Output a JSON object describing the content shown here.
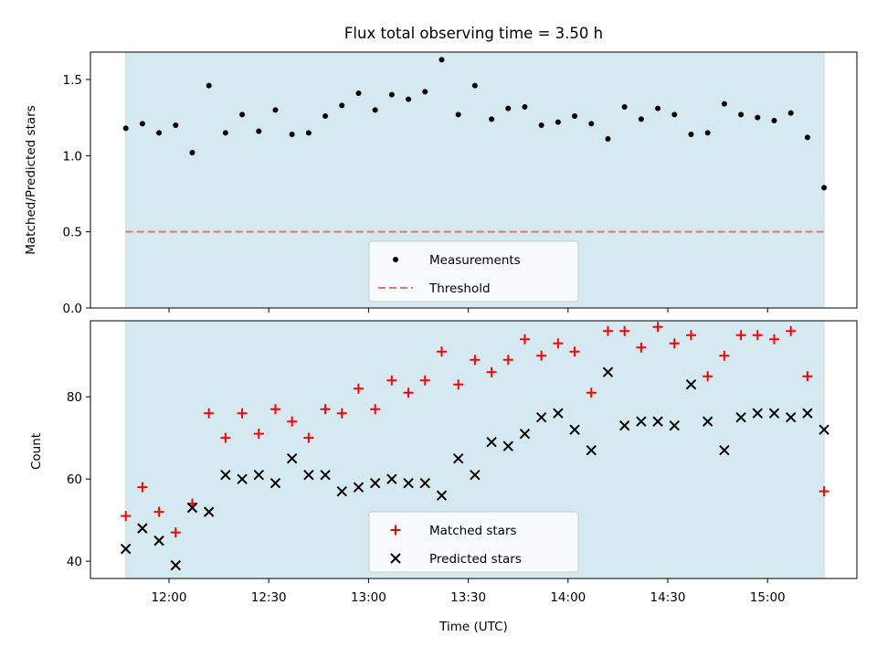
{
  "chart_data": {
    "type": "scatter",
    "title": "Flux total observing time = 3.50 h",
    "xlabel": "Time (UTC)",
    "x_tick_labels": [
      "12:00",
      "12:30",
      "13:00",
      "13:30",
      "14:00",
      "14:30",
      "15:00"
    ],
    "shaded_region": {
      "color": "#d5eaf0"
    },
    "panels": [
      {
        "name": "ratio",
        "ylabel": "Matched/Predicted stars",
        "ylim": [
          0,
          1.68
        ],
        "yticks": [
          "0.0",
          "0.5",
          "1.0",
          "1.5"
        ],
        "legend": {
          "placement": "lower center",
          "entries": [
            "Measurements",
            "Threshold"
          ]
        },
        "threshold": {
          "label": "Threshold",
          "value": 0.5,
          "color": "#f07070",
          "style": "dashed"
        },
        "series": [
          {
            "name": "Measurements",
            "marker": "dot",
            "color": "#000000",
            "x": [
              "11:47",
              "11:52",
              "11:57",
              "12:02",
              "12:07",
              "12:12",
              "12:17",
              "12:22",
              "12:27",
              "12:32",
              "12:37",
              "12:42",
              "12:47",
              "12:52",
              "12:57",
              "13:02",
              "13:07",
              "13:12",
              "13:17",
              "13:22",
              "13:27",
              "13:32",
              "13:37",
              "13:42",
              "13:47",
              "13:52",
              "13:57",
              "14:02",
              "14:07",
              "14:12",
              "14:17",
              "14:22",
              "14:27",
              "14:32",
              "14:37",
              "14:42",
              "14:47",
              "14:52",
              "14:57",
              "15:02",
              "15:07",
              "15:12",
              "15:17"
            ],
            "y": [
              1.18,
              1.21,
              1.15,
              1.2,
              1.02,
              1.46,
              1.15,
              1.27,
              1.16,
              1.3,
              1.14,
              1.15,
              1.26,
              1.33,
              1.41,
              1.3,
              1.4,
              1.37,
              1.42,
              1.63,
              1.27,
              1.46,
              1.24,
              1.31,
              1.32,
              1.2,
              1.22,
              1.26,
              1.21,
              1.11,
              1.32,
              1.24,
              1.31,
              1.27,
              1.14,
              1.15,
              1.34,
              1.27,
              1.25,
              1.23,
              1.28,
              1.12,
              0.79
            ]
          }
        ]
      },
      {
        "name": "counts",
        "ylabel": "Count",
        "ylim": [
          35.8,
          98.5
        ],
        "yticks": [
          "40",
          "60",
          "80"
        ],
        "legend": {
          "placement": "lower center",
          "entries": [
            "Matched stars",
            "Predicted stars"
          ]
        },
        "series": [
          {
            "name": "Matched stars",
            "marker": "plus",
            "color": "#ff0000",
            "x": [
              "11:47",
              "11:52",
              "11:57",
              "12:02",
              "12:07",
              "12:12",
              "12:17",
              "12:22",
              "12:27",
              "12:32",
              "12:37",
              "12:42",
              "12:47",
              "12:52",
              "12:57",
              "13:02",
              "13:07",
              "13:12",
              "13:17",
              "13:22",
              "13:27",
              "13:32",
              "13:37",
              "13:42",
              "13:47",
              "13:52",
              "13:57",
              "14:02",
              "14:07",
              "14:12",
              "14:17",
              "14:22",
              "14:27",
              "14:32",
              "14:37",
              "14:42",
              "14:47",
              "14:52",
              "14:57",
              "15:02",
              "15:07",
              "15:12",
              "15:17"
            ],
            "y": [
              51,
              58,
              52,
              47,
              54,
              76,
              70,
              76,
              71,
              77,
              74,
              70,
              77,
              76,
              82,
              77,
              84,
              81,
              84,
              91,
              83,
              89,
              86,
              89,
              94,
              90,
              93,
              91,
              81,
              96,
              96,
              92,
              97,
              93,
              95,
              85,
              90,
              95,
              95,
              94,
              96,
              85,
              57
            ]
          },
          {
            "name": "Predicted stars",
            "marker": "x",
            "color": "#000000",
            "x": [
              "11:47",
              "11:52",
              "11:57",
              "12:02",
              "12:07",
              "12:12",
              "12:17",
              "12:22",
              "12:27",
              "12:32",
              "12:37",
              "12:42",
              "12:47",
              "12:52",
              "12:57",
              "13:02",
              "13:07",
              "13:12",
              "13:17",
              "13:22",
              "13:27",
              "13:32",
              "13:37",
              "13:42",
              "13:47",
              "13:52",
              "13:57",
              "14:02",
              "14:07",
              "14:12",
              "14:17",
              "14:22",
              "14:27",
              "14:32",
              "14:37",
              "14:42",
              "14:47",
              "14:52",
              "14:57",
              "15:02",
              "15:07",
              "15:12",
              "15:17"
            ],
            "y": [
              43,
              48,
              45,
              39,
              53,
              52,
              61,
              60,
              61,
              59,
              65,
              61,
              61,
              57,
              58,
              59,
              60,
              59,
              59,
              56,
              65,
              61,
              69,
              68,
              71,
              75,
              76,
              72,
              67,
              86,
              73,
              74,
              74,
              73,
              83,
              74,
              67,
              75,
              76,
              76,
              75,
              76,
              72
            ]
          }
        ]
      }
    ]
  }
}
